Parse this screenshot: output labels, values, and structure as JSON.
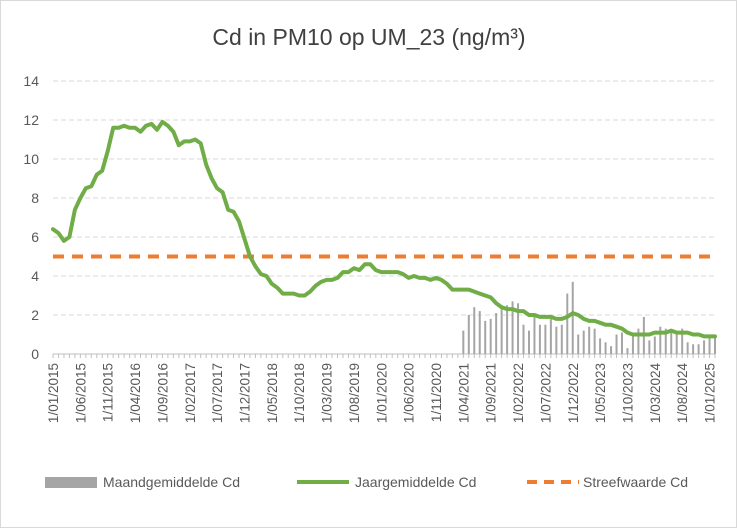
{
  "chart_data": {
    "type": "line",
    "title": "Cd in PM10 op UM_23 (ng/m³)",
    "xlabel": "",
    "ylabel": "",
    "ylim": [
      0,
      14
    ],
    "yticks": [
      "0",
      "2",
      "4",
      "6",
      "8",
      "10",
      "12",
      "14"
    ],
    "x_start": "2015-01",
    "x_end": "2025-02",
    "x_tick_labels": [
      "1/01/2015",
      "1/06/2015",
      "1/11/2015",
      "1/04/2016",
      "1/09/2016",
      "1/02/2017",
      "1/07/2017",
      "1/12/2017",
      "1/05/2018",
      "1/10/2018",
      "1/03/2019",
      "1/08/2019",
      "1/01/2020",
      "1/06/2020",
      "1/11/2020",
      "1/04/2021",
      "1/09/2021",
      "1/02/2022",
      "1/07/2022",
      "1/12/2022",
      "1/05/2023",
      "1/10/2023",
      "1/03/2024",
      "1/08/2024",
      "1/01/2025"
    ],
    "grid": true,
    "legend_position": "bottom",
    "series": [
      {
        "name": "Maandgemiddelde Cd",
        "type": "bar",
        "color": "#a5a5a5",
        "points": [
          [
            "2021-04",
            1.2
          ],
          [
            "2021-05",
            2.0
          ],
          [
            "2021-06",
            2.4
          ],
          [
            "2021-07",
            2.2
          ],
          [
            "2021-08",
            1.7
          ],
          [
            "2021-09",
            1.8
          ],
          [
            "2021-10",
            2.1
          ],
          [
            "2021-11",
            2.3
          ],
          [
            "2021-12",
            2.5
          ],
          [
            "2022-01",
            2.7
          ],
          [
            "2022-02",
            2.6
          ],
          [
            "2022-03",
            1.5
          ],
          [
            "2022-04",
            1.2
          ],
          [
            "2022-05",
            1.9
          ],
          [
            "2022-06",
            1.5
          ],
          [
            "2022-07",
            1.5
          ],
          [
            "2022-08",
            1.8
          ],
          [
            "2022-09",
            1.4
          ],
          [
            "2022-10",
            1.5
          ],
          [
            "2022-11",
            3.1
          ],
          [
            "2022-12",
            3.7
          ],
          [
            "2023-01",
            1.0
          ],
          [
            "2023-02",
            1.2
          ],
          [
            "2023-03",
            1.4
          ],
          [
            "2023-04",
            1.3
          ],
          [
            "2023-05",
            0.8
          ],
          [
            "2023-06",
            0.6
          ],
          [
            "2023-07",
            0.4
          ],
          [
            "2023-08",
            1.0
          ],
          [
            "2023-09",
            1.1
          ],
          [
            "2023-10",
            0.3
          ],
          [
            "2023-11",
            1.1
          ],
          [
            "2023-12",
            1.3
          ],
          [
            "2024-01",
            1.9
          ],
          [
            "2024-02",
            0.7
          ],
          [
            "2024-03",
            0.9
          ],
          [
            "2024-04",
            1.4
          ],
          [
            "2024-05",
            1.3
          ],
          [
            "2024-06",
            1.1
          ],
          [
            "2024-07",
            1.2
          ],
          [
            "2024-08",
            1.3
          ],
          [
            "2024-09",
            0.6
          ],
          [
            "2024-10",
            0.5
          ],
          [
            "2024-11",
            0.5
          ],
          [
            "2024-12",
            0.7
          ],
          [
            "2025-01",
            0.9
          ],
          [
            "2025-02",
            0.9
          ]
        ]
      },
      {
        "name": "Jaargemiddelde Cd",
        "type": "line",
        "color": "#70ad47",
        "points": [
          [
            "2015-01",
            6.4
          ],
          [
            "2015-02",
            6.2
          ],
          [
            "2015-03",
            5.8
          ],
          [
            "2015-04",
            6.0
          ],
          [
            "2015-05",
            7.4
          ],
          [
            "2015-06",
            8.0
          ],
          [
            "2015-07",
            8.5
          ],
          [
            "2015-08",
            8.6
          ],
          [
            "2015-09",
            9.2
          ],
          [
            "2015-10",
            9.4
          ],
          [
            "2015-11",
            10.4
          ],
          [
            "2015-12",
            11.6
          ],
          [
            "2016-01",
            11.6
          ],
          [
            "2016-02",
            11.7
          ],
          [
            "2016-03",
            11.6
          ],
          [
            "2016-04",
            11.6
          ],
          [
            "2016-05",
            11.4
          ],
          [
            "2016-06",
            11.7
          ],
          [
            "2016-07",
            11.8
          ],
          [
            "2016-08",
            11.5
          ],
          [
            "2016-09",
            11.9
          ],
          [
            "2016-10",
            11.7
          ],
          [
            "2016-11",
            11.4
          ],
          [
            "2016-12",
            10.7
          ],
          [
            "2017-01",
            10.9
          ],
          [
            "2017-02",
            10.9
          ],
          [
            "2017-03",
            11.0
          ],
          [
            "2017-04",
            10.8
          ],
          [
            "2017-05",
            9.7
          ],
          [
            "2017-06",
            9.0
          ],
          [
            "2017-07",
            8.5
          ],
          [
            "2017-08",
            8.3
          ],
          [
            "2017-09",
            7.4
          ],
          [
            "2017-10",
            7.3
          ],
          [
            "2017-11",
            6.8
          ],
          [
            "2017-12",
            5.9
          ],
          [
            "2018-01",
            5.0
          ],
          [
            "2018-02",
            4.5
          ],
          [
            "2018-03",
            4.1
          ],
          [
            "2018-04",
            4.0
          ],
          [
            "2018-05",
            3.6
          ],
          [
            "2018-06",
            3.4
          ],
          [
            "2018-07",
            3.1
          ],
          [
            "2018-08",
            3.1
          ],
          [
            "2018-09",
            3.1
          ],
          [
            "2018-10",
            3.0
          ],
          [
            "2018-11",
            3.0
          ],
          [
            "2018-12",
            3.2
          ],
          [
            "2019-01",
            3.5
          ],
          [
            "2019-02",
            3.7
          ],
          [
            "2019-03",
            3.8
          ],
          [
            "2019-04",
            3.8
          ],
          [
            "2019-05",
            3.9
          ],
          [
            "2019-06",
            4.2
          ],
          [
            "2019-07",
            4.2
          ],
          [
            "2019-08",
            4.4
          ],
          [
            "2019-09",
            4.3
          ],
          [
            "2019-10",
            4.6
          ],
          [
            "2019-11",
            4.6
          ],
          [
            "2019-12",
            4.3
          ],
          [
            "2020-01",
            4.2
          ],
          [
            "2020-02",
            4.2
          ],
          [
            "2020-03",
            4.2
          ],
          [
            "2020-04",
            4.2
          ],
          [
            "2020-05",
            4.1
          ],
          [
            "2020-06",
            3.9
          ],
          [
            "2020-07",
            4.0
          ],
          [
            "2020-08",
            3.9
          ],
          [
            "2020-09",
            3.9
          ],
          [
            "2020-10",
            3.8
          ],
          [
            "2020-11",
            3.9
          ],
          [
            "2020-12",
            3.8
          ],
          [
            "2021-01",
            3.6
          ],
          [
            "2021-02",
            3.3
          ],
          [
            "2021-03",
            3.3
          ],
          [
            "2021-04",
            3.3
          ],
          [
            "2021-05",
            3.3
          ],
          [
            "2021-06",
            3.2
          ],
          [
            "2021-07",
            3.1
          ],
          [
            "2021-08",
            3.0
          ],
          [
            "2021-09",
            2.9
          ],
          [
            "2021-10",
            2.6
          ],
          [
            "2021-11",
            2.4
          ],
          [
            "2021-12",
            2.3
          ],
          [
            "2022-01",
            2.3
          ],
          [
            "2022-02",
            2.2
          ],
          [
            "2022-03",
            2.2
          ],
          [
            "2022-04",
            2.0
          ],
          [
            "2022-05",
            2.0
          ],
          [
            "2022-06",
            1.9
          ],
          [
            "2022-07",
            1.9
          ],
          [
            "2022-08",
            1.9
          ],
          [
            "2022-09",
            1.8
          ],
          [
            "2022-10",
            1.8
          ],
          [
            "2022-11",
            1.9
          ],
          [
            "2022-12",
            2.1
          ],
          [
            "2023-01",
            2.0
          ],
          [
            "2023-02",
            1.8
          ],
          [
            "2023-03",
            1.7
          ],
          [
            "2023-04",
            1.7
          ],
          [
            "2023-05",
            1.6
          ],
          [
            "2023-06",
            1.5
          ],
          [
            "2023-07",
            1.5
          ],
          [
            "2023-08",
            1.4
          ],
          [
            "2023-09",
            1.3
          ],
          [
            "2023-10",
            1.1
          ],
          [
            "2023-11",
            1.0
          ],
          [
            "2023-12",
            1.0
          ],
          [
            "2024-01",
            1.0
          ],
          [
            "2024-02",
            1.0
          ],
          [
            "2024-03",
            1.1
          ],
          [
            "2024-04",
            1.1
          ],
          [
            "2024-05",
            1.1
          ],
          [
            "2024-06",
            1.2
          ],
          [
            "2024-07",
            1.1
          ],
          [
            "2024-08",
            1.1
          ],
          [
            "2024-09",
            1.1
          ],
          [
            "2024-10",
            1.0
          ],
          [
            "2024-11",
            1.0
          ],
          [
            "2024-12",
            0.9
          ],
          [
            "2025-01",
            0.9
          ],
          [
            "2025-02",
            0.9
          ]
        ]
      },
      {
        "name": "Streefwaarde Cd",
        "type": "line",
        "style": "dashed",
        "color": "#ed7d31",
        "points": [
          [
            "2015-01",
            5
          ],
          [
            "2025-02",
            5
          ]
        ]
      }
    ]
  }
}
